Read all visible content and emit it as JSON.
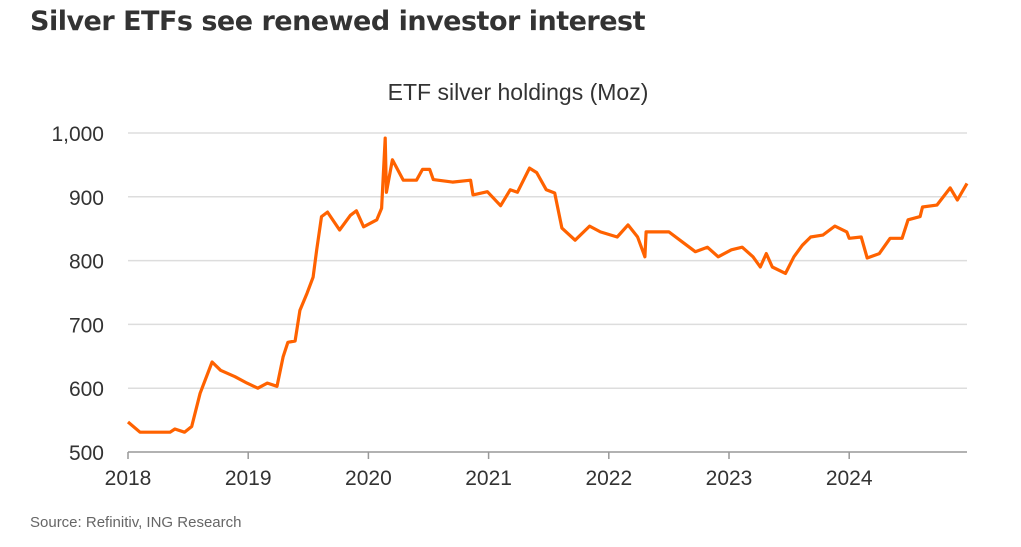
{
  "headline": "Silver ETFs see renewed investor interest",
  "source": "Source: Refinitiv, ING Research",
  "chart_data": {
    "type": "line",
    "title": "ETF silver holdings (Moz)",
    "xlabel": "",
    "ylabel": "",
    "xlim": [
      2018,
      2024.98
    ],
    "ylim": [
      500,
      1000
    ],
    "x_ticks": [
      "2018",
      "2019",
      "2020",
      "2021",
      "2022",
      "2023",
      "2024"
    ],
    "y_ticks": [
      "500",
      "600",
      "700",
      "800",
      "900",
      "1,000"
    ],
    "grid": "horizontal",
    "line_color": "#FF6200",
    "series": [
      {
        "x": [
          2018.0,
          2018.1,
          2018.35,
          2018.39,
          2018.47,
          2018.53,
          2018.6,
          2018.7,
          2018.77,
          2018.89,
          2018.99,
          2019.08,
          2019.16,
          2019.24,
          2019.29,
          2019.33,
          2019.39,
          2019.43,
          2019.49,
          2019.54,
          2019.57,
          2019.61,
          2019.66,
          2019.76,
          2019.85,
          2019.9,
          2019.96,
          2020.07,
          2020.11,
          2020.14,
          2020.15,
          2020.2,
          2020.29,
          2020.4,
          2020.45,
          2020.51,
          2020.54,
          2020.7,
          2020.85,
          2020.87,
          2020.99,
          2021.1,
          2021.18,
          2021.24,
          2021.34,
          2021.4,
          2021.48,
          2021.55,
          2021.61,
          2021.72,
          2021.84,
          2021.93,
          2022.07,
          2022.16,
          2022.24,
          2022.3,
          2022.31,
          2022.5,
          2022.62,
          2022.72,
          2022.82,
          2022.91,
          2023.02,
          2023.11,
          2023.2,
          2023.26,
          2023.31,
          2023.36,
          2023.47,
          2023.54,
          2023.61,
          2023.68,
          2023.78,
          2023.88,
          2023.98,
          2024.0,
          2024.1,
          2024.15,
          2024.25,
          2024.34,
          2024.44,
          2024.49,
          2024.59,
          2024.61,
          2024.73,
          2024.84,
          2024.9,
          2024.98
        ],
        "values": [
          547,
          531,
          531,
          536,
          531,
          540,
          592,
          641,
          628,
          618,
          608,
          600,
          608,
          603,
          649,
          672,
          674,
          722,
          749,
          774,
          817,
          869,
          876,
          848,
          871,
          878,
          853,
          864,
          882,
          992,
          907,
          958,
          926,
          926,
          943,
          943,
          927,
          923,
          926,
          903,
          908,
          886,
          911,
          907,
          945,
          938,
          911,
          906,
          851,
          832,
          854,
          845,
          837,
          856,
          837,
          806,
          845,
          845,
          828,
          814,
          821,
          806,
          817,
          821,
          806,
          790,
          811,
          790,
          780,
          806,
          824,
          837,
          840,
          854,
          845,
          835,
          837,
          804,
          811,
          835,
          835,
          864,
          869,
          884,
          887,
          914,
          895,
          921
        ]
      }
    ]
  }
}
